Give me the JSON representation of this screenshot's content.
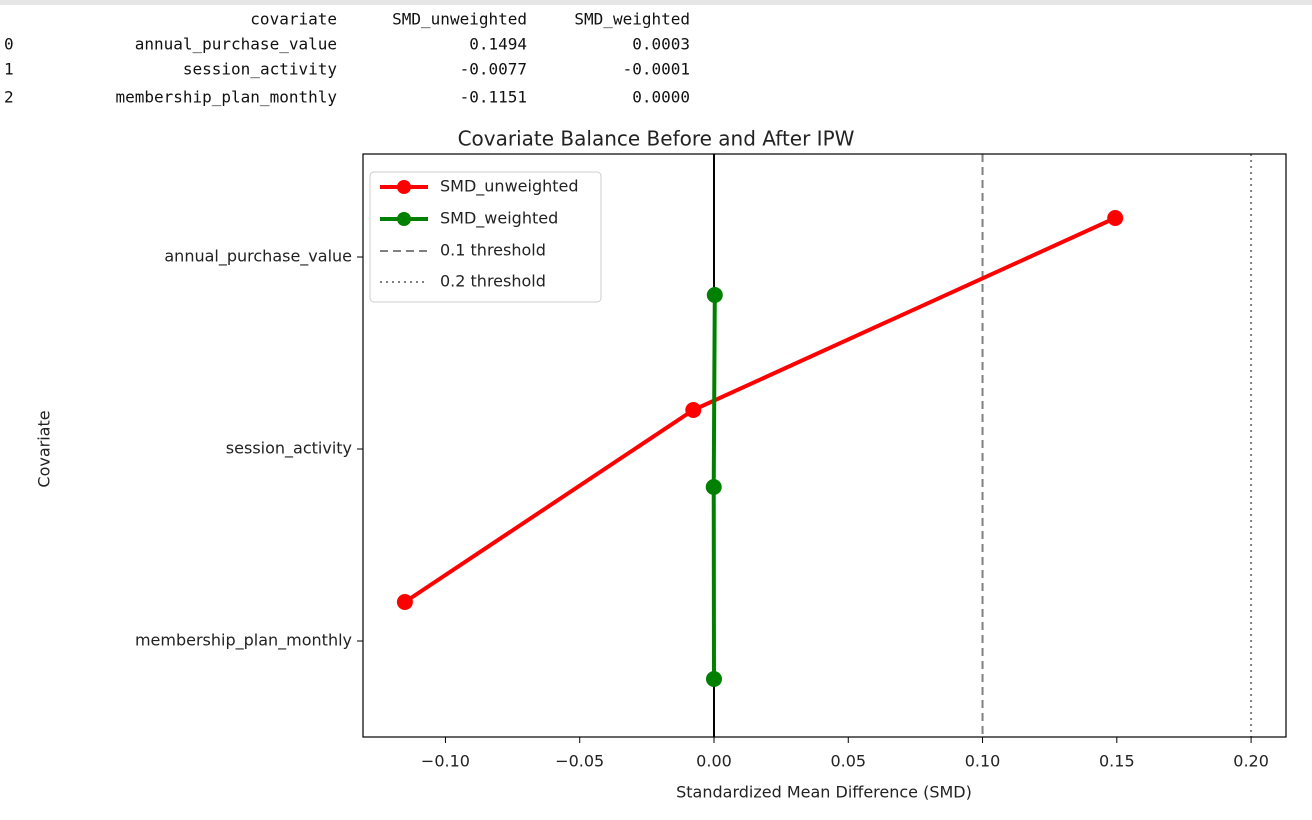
{
  "table": {
    "columns": [
      "covariate",
      "SMD_unweighted",
      "SMD_weighted"
    ],
    "rows": [
      {
        "index": "0",
        "cells": [
          "annual_purchase_value",
          "0.1494",
          "0.0003"
        ]
      },
      {
        "index": "1",
        "cells": [
          "session_activity",
          "-0.0077",
          "-0.0001"
        ]
      },
      {
        "index": "2",
        "cells": [
          "membership_plan_monthly",
          "-0.1151",
          "0.0000"
        ]
      }
    ]
  },
  "chart_data": {
    "type": "line",
    "title": "Covariate Balance Before and After IPW",
    "xlabel": "Standardized Mean Difference (SMD)",
    "ylabel": "Covariate",
    "categories": [
      "annual_purchase_value",
      "session_activity",
      "membership_plan_monthly"
    ],
    "series": [
      {
        "name": "SMD_unweighted",
        "color": "red",
        "values": [
          0.1494,
          -0.0077,
          -0.1151
        ]
      },
      {
        "name": "SMD_weighted",
        "color": "green",
        "values": [
          0.0003,
          -0.0001,
          0.0
        ]
      }
    ],
    "reference_lines": [
      {
        "value": 0,
        "color": "black",
        "style": "solid"
      },
      {
        "value": 0.1,
        "color": "gray",
        "style": "dashed",
        "label": "0.1 threshold"
      },
      {
        "value": 0.2,
        "color": "gray",
        "style": "dotted",
        "label": "0.2 threshold"
      }
    ],
    "xlim": [
      -0.1307,
      0.213
    ],
    "xticks": [
      {
        "value": -0.1,
        "label": "−0.10"
      },
      {
        "value": -0.05,
        "label": "−0.05"
      },
      {
        "value": 0,
        "label": "0.00"
      },
      0.05,
      {
        "value": 0.1,
        "label": "0.10"
      },
      0.15,
      {
        "value": 0.2,
        "label": "0.20"
      }
    ],
    "legend": "upper left",
    "grid": false
  }
}
